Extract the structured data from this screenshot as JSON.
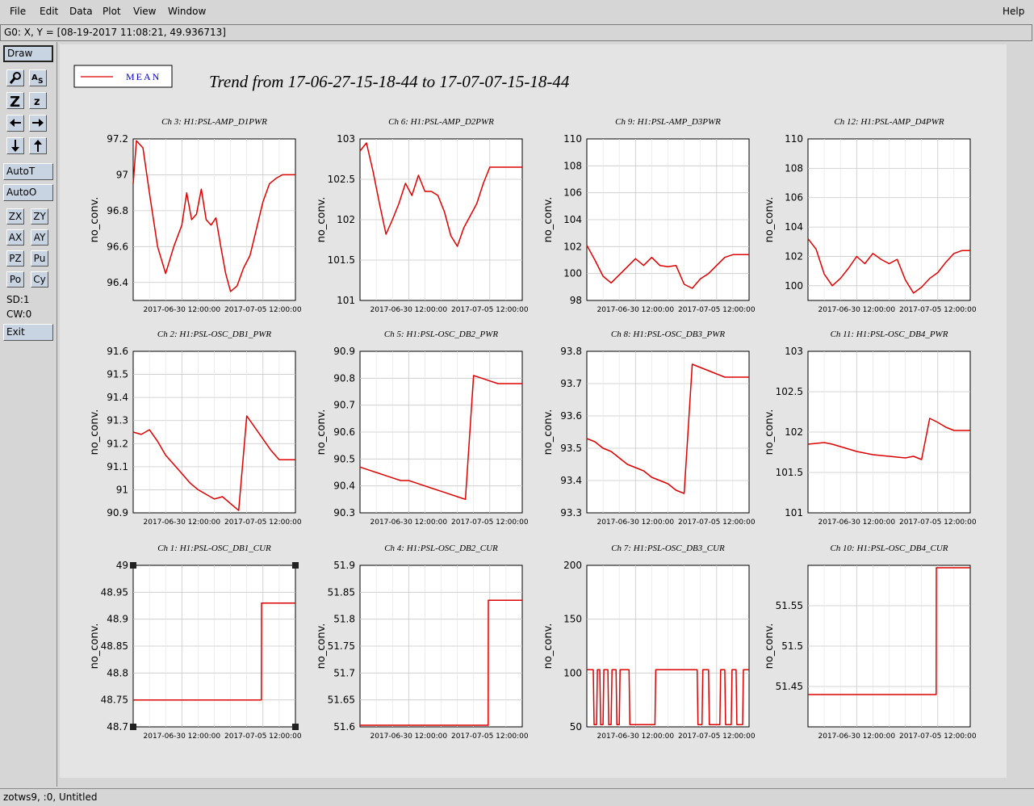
{
  "menu": {
    "file": "File",
    "edit": "Edit",
    "data": "Data",
    "plot": "Plot",
    "view": "View",
    "window": "Window",
    "help": "Help"
  },
  "coord_text": "G0: X, Y = [08-19-2017 11:08:21, 49.936713]",
  "toolbar": {
    "draw": "Draw",
    "autot": "AutoT",
    "autoo": "AutoO",
    "zx": "ZX",
    "zy": "ZY",
    "ax": "AX",
    "ay": "AY",
    "pz": "PZ",
    "pu": "Pu",
    "po": "Po",
    "cy": "Cy",
    "sd": "SD:1",
    "cw": "CW:0",
    "exit": "Exit",
    "icons": [
      "magnify-icon",
      "text-tool-icon",
      "zoom-in-icon",
      "zoom-out-icon",
      "arrow-left-icon",
      "arrow-right-icon",
      "arrow-down-icon",
      "arrow-up-icon"
    ]
  },
  "legend": {
    "label": "MEAN",
    "color": "#dd0000"
  },
  "title": "Trend from 17-06-27-15-18-44 to 17-07-07-15-18-44",
  "status": "zotws9, :0, Untitled",
  "colors": {
    "trace": "#dd0000",
    "label_blue": "#0000cc",
    "grid": "#c8c8c8"
  },
  "chart_data": [
    {
      "type": "line",
      "title": "Ch 3: H1:PSL-AMP_D1PWR",
      "ylabel": "no_conv.",
      "ylim": [
        96.3,
        97.2
      ],
      "yticks": [
        97.2,
        97,
        96.8,
        96.6,
        96.4
      ],
      "xticks": [
        "2017-06-30 12:00:00",
        "2017-07-05 12:00:00"
      ],
      "x_days": [
        0,
        0.2,
        0.6,
        1,
        1.5,
        2,
        2.5,
        3,
        3.3,
        3.6,
        3.9,
        4.2,
        4.5,
        4.8,
        5.1,
        5.4,
        5.7,
        6,
        6.4,
        6.8,
        7.2,
        7.6,
        8,
        8.4,
        8.8,
        9.2,
        9.6,
        10
      ],
      "values": [
        96.95,
        97.19,
        97.15,
        96.9,
        96.6,
        96.45,
        96.6,
        96.72,
        96.9,
        96.75,
        96.78,
        96.92,
        96.75,
        96.72,
        96.76,
        96.6,
        96.45,
        96.35,
        96.38,
        96.48,
        96.55,
        96.7,
        96.85,
        96.95,
        96.98,
        97,
        97,
        97
      ]
    },
    {
      "type": "line",
      "title": "Ch 6: H1:PSL-AMP_D2PWR",
      "ylabel": "no_conv.",
      "ylim": [
        101,
        103
      ],
      "yticks": [
        103,
        102.5,
        102,
        101.5,
        101
      ],
      "xticks": [
        "2017-06-30 12:00:00",
        "2017-07-05 12:00:00"
      ],
      "x_days": [
        0,
        0.4,
        0.8,
        1.2,
        1.6,
        2,
        2.4,
        2.8,
        3.2,
        3.6,
        4,
        4.4,
        4.8,
        5.2,
        5.6,
        6,
        6.4,
        6.8,
        7.2,
        7.6,
        8,
        8.4,
        8.8,
        9.2,
        9.6,
        10
      ],
      "values": [
        102.85,
        102.95,
        102.6,
        102.2,
        101.82,
        102,
        102.2,
        102.45,
        102.3,
        102.55,
        102.35,
        102.35,
        102.3,
        102.1,
        101.8,
        101.67,
        101.9,
        102.05,
        102.2,
        102.45,
        102.65,
        102.65,
        102.65,
        102.65,
        102.65,
        102.65
      ]
    },
    {
      "type": "line",
      "title": "Ch 9: H1:PSL-AMP_D3PWR",
      "ylabel": "no_conv.",
      "ylim": [
        98,
        110
      ],
      "yticks": [
        110,
        108,
        106,
        104,
        102,
        100,
        98
      ],
      "xticks": [
        "2017-06-30 12:00:00",
        "2017-07-05 12:00:00"
      ],
      "x_days": [
        0,
        0.5,
        1,
        1.5,
        2,
        2.5,
        3,
        3.5,
        4,
        4.5,
        5,
        5.5,
        6,
        6.5,
        7,
        7.5,
        8,
        8.5,
        9,
        9.5,
        10
      ],
      "values": [
        102.1,
        101,
        99.8,
        99.3,
        99.9,
        100.5,
        101.1,
        100.6,
        101.2,
        100.6,
        100.5,
        100.6,
        99.2,
        98.9,
        99.6,
        100,
        100.6,
        101.2,
        101.4,
        101.4,
        101.4
      ]
    },
    {
      "type": "line",
      "title": "Ch 12: H1:PSL-AMP_D4PWR",
      "ylabel": "no_conv.",
      "ylim": [
        99,
        110
      ],
      "yticks": [
        110,
        108,
        106,
        104,
        102,
        100
      ],
      "xticks": [
        "2017-06-30 12:00:00",
        "2017-07-05 12:00:00"
      ],
      "x_days": [
        0,
        0.5,
        1,
        1.5,
        2,
        2.5,
        3,
        3.5,
        4,
        4.5,
        5,
        5.5,
        6,
        6.5,
        7,
        7.5,
        8,
        8.5,
        9,
        9.5,
        10
      ],
      "values": [
        103.2,
        102.5,
        100.8,
        100,
        100.5,
        101.2,
        102,
        101.5,
        102.2,
        101.8,
        101.5,
        101.8,
        100.4,
        99.5,
        99.9,
        100.5,
        100.9,
        101.6,
        102.2,
        102.4,
        102.4
      ]
    },
    {
      "type": "line",
      "title": "Ch 2: H1:PSL-OSC_DB1_PWR",
      "ylabel": "no_conv.",
      "ylim": [
        90.9,
        91.6
      ],
      "yticks": [
        91.6,
        91.5,
        91.4,
        91.3,
        91.2,
        91.1,
        91,
        90.9
      ],
      "xticks": [
        "2017-06-30 12:00:00",
        "2017-07-05 12:00:00"
      ],
      "x_days": [
        0,
        0.5,
        1,
        1.5,
        2,
        2.5,
        3,
        3.5,
        4,
        4.5,
        5,
        5.5,
        6,
        6.5,
        7,
        7.5,
        8,
        8.5,
        9,
        9.5,
        10
      ],
      "values": [
        91.25,
        91.24,
        91.26,
        91.21,
        91.15,
        91.11,
        91.07,
        91.03,
        91,
        90.98,
        90.96,
        90.97,
        90.94,
        90.91,
        91.32,
        91.27,
        91.22,
        91.17,
        91.13,
        91.13,
        91.13
      ]
    },
    {
      "type": "line",
      "title": "Ch 5: H1:PSL-OSC_DB2_PWR",
      "ylabel": "no_conv.",
      "ylim": [
        90.3,
        90.9
      ],
      "yticks": [
        90.9,
        90.8,
        90.7,
        90.6,
        90.5,
        90.4,
        90.3
      ],
      "xticks": [
        "2017-06-30 12:00:00",
        "2017-07-05 12:00:00"
      ],
      "x_days": [
        0,
        0.5,
        1,
        1.5,
        2,
        2.5,
        3,
        3.5,
        4,
        4.5,
        5,
        5.5,
        6,
        6.5,
        7,
        7.5,
        8,
        8.5,
        9,
        9.5,
        10
      ],
      "values": [
        90.47,
        90.46,
        90.45,
        90.44,
        90.43,
        90.42,
        90.42,
        90.41,
        90.4,
        90.39,
        90.38,
        90.37,
        90.36,
        90.35,
        90.81,
        90.8,
        90.79,
        90.78,
        90.78,
        90.78,
        90.78
      ]
    },
    {
      "type": "line",
      "title": "Ch 8: H1:PSL-OSC_DB3_PWR",
      "ylabel": "no_conv.",
      "ylim": [
        93.3,
        93.8
      ],
      "yticks": [
        93.8,
        93.7,
        93.6,
        93.5,
        93.4,
        93.3
      ],
      "xticks": [
        "2017-06-30 12:00:00",
        "2017-07-05 12:00:00"
      ],
      "x_days": [
        0,
        0.5,
        1,
        1.5,
        2,
        2.5,
        3,
        3.5,
        4,
        4.5,
        5,
        5.5,
        6,
        6.5,
        7,
        7.5,
        8,
        8.5,
        9,
        9.5,
        10
      ],
      "values": [
        93.53,
        93.52,
        93.5,
        93.49,
        93.47,
        93.45,
        93.44,
        93.43,
        93.41,
        93.4,
        93.39,
        93.37,
        93.36,
        93.76,
        93.75,
        93.74,
        93.73,
        93.72,
        93.72,
        93.72,
        93.72
      ]
    },
    {
      "type": "line",
      "title": "Ch 11: H1:PSL-OSC_DB4_PWR",
      "ylabel": "no_conv.",
      "ylim": [
        101,
        103
      ],
      "yticks": [
        103,
        102.5,
        102,
        101.5,
        101
      ],
      "xticks": [
        "2017-06-30 12:00:00",
        "2017-07-05 12:00:00"
      ],
      "x_days": [
        0,
        0.5,
        1,
        1.5,
        2,
        2.5,
        3,
        3.5,
        4,
        4.5,
        5,
        5.5,
        6,
        6.5,
        7,
        7.5,
        8,
        8.5,
        9,
        9.5,
        10
      ],
      "values": [
        101.85,
        101.86,
        101.87,
        101.85,
        101.82,
        101.79,
        101.76,
        101.74,
        101.72,
        101.71,
        101.7,
        101.69,
        101.68,
        101.7,
        101.66,
        102.17,
        102.12,
        102.06,
        102.02,
        102.02,
        102.02
      ]
    },
    {
      "type": "line",
      "title": "Ch 1: H1:PSL-OSC_DB1_CUR",
      "ylabel": "no_conv.",
      "ylim": [
        48.7,
        49
      ],
      "yticks": [
        49,
        48.95,
        48.9,
        48.85,
        48.8,
        48.75,
        48.7
      ],
      "xticks": [
        "2017-06-30 12:00:00",
        "2017-07-05 12:00:00"
      ],
      "x_days": [
        0,
        7.9,
        7.91,
        10
      ],
      "values": [
        48.75,
        48.75,
        48.93,
        48.93
      ]
    },
    {
      "type": "line",
      "title": "Ch 4: H1:PSL-OSC_DB2_CUR",
      "ylabel": "no_conv.",
      "ylim": [
        51.6,
        51.9
      ],
      "yticks": [
        51.9,
        51.85,
        51.8,
        51.75,
        51.7,
        51.65,
        51.6
      ],
      "xticks": [
        "2017-06-30 12:00:00",
        "2017-07-05 12:00:00"
      ],
      "x_days": [
        0,
        7.9,
        7.91,
        10
      ],
      "values": [
        51.603,
        51.603,
        51.835,
        51.835
      ]
    },
    {
      "type": "line",
      "title": "Ch 7: H1:PSL-OSC_DB3_CUR",
      "ylabel": "no_conv.",
      "ylim": [
        50,
        200
      ],
      "yticks": [
        200,
        150,
        100,
        50
      ],
      "xticks": [
        "2017-06-30 12:00:00",
        "2017-07-05 12:00:00"
      ],
      "x_days": [
        0,
        0.4,
        0.45,
        0.6,
        0.65,
        0.8,
        0.85,
        1.0,
        1.05,
        1.3,
        1.35,
        1.5,
        1.55,
        1.8,
        1.85,
        2,
        2.05,
        2.6,
        2.65,
        4.2,
        4.25,
        4.4,
        6.8,
        6.85,
        7.1,
        7.15,
        7.5,
        7.55,
        8.2,
        8.25,
        8.5,
        8.55,
        8.9,
        8.95,
        9.2,
        9.25,
        9.6,
        9.65,
        10
      ],
      "values": [
        103,
        103,
        52,
        52,
        103,
        103,
        52,
        52,
        103,
        103,
        52,
        52,
        103,
        103,
        52,
        52,
        103,
        103,
        52,
        52,
        103,
        103,
        103,
        52,
        52,
        103,
        103,
        52,
        52,
        103,
        103,
        52,
        52,
        103,
        103,
        52,
        52,
        103,
        103
      ]
    },
    {
      "type": "line",
      "title": "Ch 10: H1:PSL-OSC_DB4_CUR",
      "ylabel": "no_conv.",
      "ylim": [
        51.4,
        51.6
      ],
      "yticks": [
        51.55,
        51.5,
        51.45
      ],
      "xticks": [
        "2017-06-30 12:00:00",
        "2017-07-05 12:00:00"
      ],
      "x_days": [
        0,
        7.9,
        7.91,
        10
      ],
      "values": [
        51.44,
        51.44,
        51.597,
        51.597
      ]
    }
  ]
}
